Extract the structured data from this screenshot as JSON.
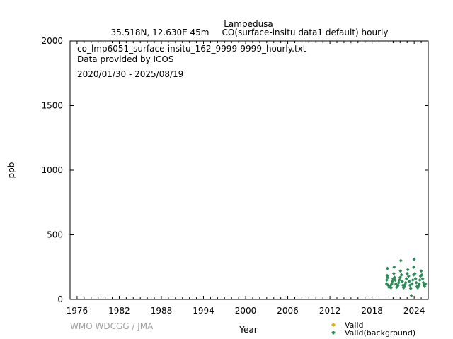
{
  "header": {
    "station": "Lampedusa",
    "location": "35.518N, 12.630E 45m",
    "dataset": "CO(surface-insitu data1 default) hourly"
  },
  "info": {
    "filename": "co_lmp6051_surface-insitu_162_9999-9999_hourly.txt",
    "provider": "Data provided by ICOS",
    "period": "2020/01/30 - 2025/08/19"
  },
  "credit": "WMO WDCGG / JMA",
  "colors": {
    "valid": "#e0b000",
    "background": "#2e8b57",
    "axis": "#000000",
    "credit": "#a0a0a0"
  },
  "chart_data": {
    "type": "scatter",
    "xlabel": "Year",
    "ylabel": "ppb",
    "xlim": [
      1975,
      2026
    ],
    "ylim": [
      0,
      2000
    ],
    "x_ticks": [
      1976,
      1982,
      1988,
      1994,
      2000,
      2006,
      2012,
      2018,
      2024
    ],
    "y_ticks": [
      0,
      500,
      1000,
      1500,
      2000
    ],
    "grid": false,
    "legend_position": "bottom-right",
    "series": [
      {
        "name": "Valid",
        "marker": "diamond",
        "color": "#e0b000",
        "points": []
      },
      {
        "name": "Valid(background)",
        "marker": "diamond",
        "color": "#2e8b57",
        "points": [
          [
            2020.08,
            120
          ],
          [
            2020.1,
            150
          ],
          [
            2020.15,
            185
          ],
          [
            2020.2,
            240
          ],
          [
            2020.25,
            170
          ],
          [
            2020.3,
            110
          ],
          [
            2020.4,
            95
          ],
          [
            2020.5,
            100
          ],
          [
            2020.6,
            105
          ],
          [
            2020.7,
            90
          ],
          [
            2020.8,
            120
          ],
          [
            2020.9,
            140
          ],
          [
            2021.0,
            160
          ],
          [
            2021.1,
            200
          ],
          [
            2021.15,
            250
          ],
          [
            2021.2,
            170
          ],
          [
            2021.3,
            150
          ],
          [
            2021.4,
            120
          ],
          [
            2021.5,
            95
          ],
          [
            2021.6,
            100
          ],
          [
            2021.7,
            110
          ],
          [
            2021.8,
            130
          ],
          [
            2021.9,
            150
          ],
          [
            2022.0,
            170
          ],
          [
            2022.05,
            220
          ],
          [
            2022.1,
            300
          ],
          [
            2022.2,
            190
          ],
          [
            2022.3,
            140
          ],
          [
            2022.4,
            110
          ],
          [
            2022.5,
            90
          ],
          [
            2022.6,
            100
          ],
          [
            2022.7,
            115
          ],
          [
            2022.8,
            130
          ],
          [
            2022.9,
            160
          ],
          [
            2023.0,
            200
          ],
          [
            2023.1,
            230
          ],
          [
            2023.2,
            180
          ],
          [
            2023.3,
            140
          ],
          [
            2023.4,
            110
          ],
          [
            2023.5,
            85
          ],
          [
            2023.6,
            30
          ],
          [
            2023.7,
            120
          ],
          [
            2023.8,
            150
          ],
          [
            2023.9,
            190
          ],
          [
            2023.95,
            250
          ],
          [
            2024.0,
            310
          ],
          [
            2024.1,
            200
          ],
          [
            2024.2,
            160
          ],
          [
            2024.3,
            130
          ],
          [
            2024.4,
            100
          ],
          [
            2024.5,
            90
          ],
          [
            2024.6,
            105
          ],
          [
            2024.7,
            120
          ],
          [
            2024.8,
            150
          ],
          [
            2024.9,
            180
          ],
          [
            2025.0,
            220
          ],
          [
            2025.1,
            190
          ],
          [
            2025.2,
            160
          ],
          [
            2025.3,
            130
          ],
          [
            2025.4,
            110
          ],
          [
            2025.5,
            100
          ],
          [
            2025.6,
            120
          ]
        ]
      }
    ]
  }
}
